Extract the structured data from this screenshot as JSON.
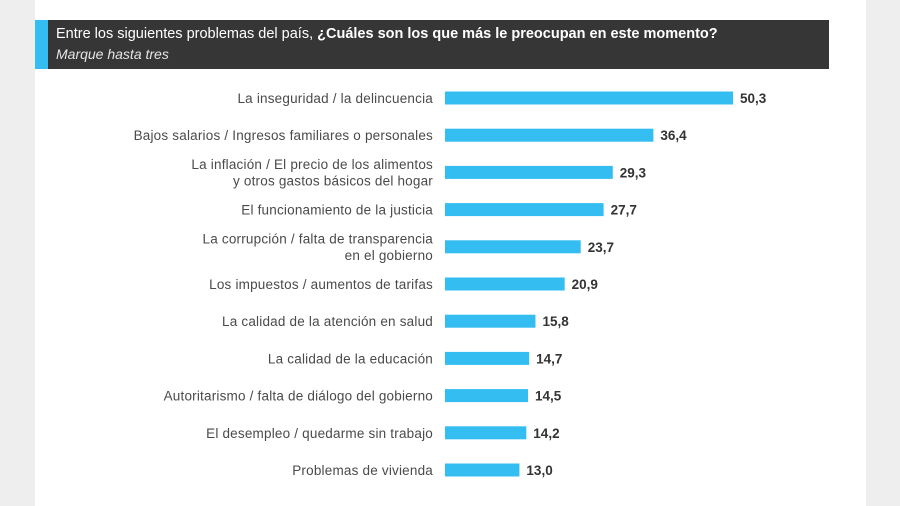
{
  "header": {
    "question_prefix": "Entre los siguientes problemas del país,",
    "question_bold": "¿Cuáles son los que más le preocupan en este momento?",
    "instruction": "Marque hasta tres"
  },
  "colors": {
    "bar": "#33bdf0",
    "header_bg": "#363636",
    "accent": "#33bdf0"
  },
  "chart_data": {
    "type": "bar",
    "orientation": "horizontal",
    "categories": [
      [
        "La inseguridad / la delincuencia"
      ],
      [
        "Bajos salarios / Ingresos familiares o personales"
      ],
      [
        "La inflación / El precio de los alimentos",
        "y otros gastos básicos del hogar"
      ],
      [
        "El funcionamiento de la justicia"
      ],
      [
        "La corrupción / falta de transparencia",
        "en el gobierno"
      ],
      [
        "Los impuestos / aumentos de tarifas"
      ],
      [
        "La calidad de la atención en salud"
      ],
      [
        "La calidad de la educación"
      ],
      [
        "Autoritarismo / falta de diálogo del gobierno"
      ],
      [
        "El desempleo / quedarme sin trabajo"
      ],
      [
        "Problemas de vivienda"
      ]
    ],
    "values": [
      50.3,
      36.4,
      29.3,
      27.7,
      23.7,
      20.9,
      15.8,
      14.7,
      14.5,
      14.2,
      13.0
    ],
    "value_labels": [
      "50,3",
      "36,4",
      "29,3",
      "27,7",
      "23,7",
      "20,9",
      "15,8",
      "14,7",
      "14,5",
      "14,2",
      "13,0"
    ],
    "xlim": [
      0,
      50.3
    ],
    "grid": false,
    "legend": "none"
  }
}
